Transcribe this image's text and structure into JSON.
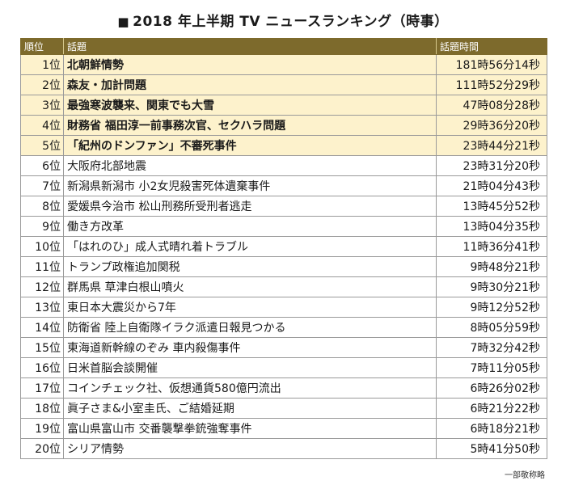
{
  "title": "2018 年上半期 TV ニュースランキング（時事）",
  "title_marker": "■",
  "table": {
    "headers": {
      "rank": "順位",
      "topic": "話題",
      "time": "話題時間"
    },
    "rows": [
      {
        "rank": "1位",
        "topic": "北朝鮮情勢",
        "time": "181時56分14秒"
      },
      {
        "rank": "2位",
        "topic": "森友・加計問題",
        "time": "111時52分29秒"
      },
      {
        "rank": "3位",
        "topic": "最強寒波襲来、関東でも大雪",
        "time": "47時08分28秒"
      },
      {
        "rank": "4位",
        "topic": "財務省 福田淳一前事務次官、セクハラ問題",
        "time": "29時36分20秒"
      },
      {
        "rank": "5位",
        "topic": "「紀州のドンファン」不審死事件",
        "time": "23時44分21秒"
      },
      {
        "rank": "6位",
        "topic": "大阪府北部地震",
        "time": "23時31分20秒"
      },
      {
        "rank": "7位",
        "topic": "新潟県新潟市 小2女児殺害死体遺棄事件",
        "time": "21時04分43秒"
      },
      {
        "rank": "8位",
        "topic": "愛媛県今治市 松山刑務所受刑者逃走",
        "time": "13時45分52秒"
      },
      {
        "rank": "9位",
        "topic": "働き方改革",
        "time": "13時04分35秒"
      },
      {
        "rank": "10位",
        "topic": "「はれのひ」成人式晴れ着トラブル",
        "time": "11時36分41秒"
      },
      {
        "rank": "11位",
        "topic": "トランプ政権追加関税",
        "time": "9時48分21秒"
      },
      {
        "rank": "12位",
        "topic": "群馬県 草津白根山噴火",
        "time": "9時30分21秒"
      },
      {
        "rank": "13位",
        "topic": "東日本大震災から7年",
        "time": "9時12分52秒"
      },
      {
        "rank": "14位",
        "topic": "防衛省 陸上自衛隊イラク派遣日報見つかる",
        "time": "8時05分59秒"
      },
      {
        "rank": "15位",
        "topic": "東海道新幹線のぞみ 車内殺傷事件",
        "time": "7時32分42秒"
      },
      {
        "rank": "16位",
        "topic": "日米首脳会談開催",
        "time": "7時11分05秒"
      },
      {
        "rank": "17位",
        "topic": "コインチェック社、仮想通貨580億円流出",
        "time": "6時26分02秒"
      },
      {
        "rank": "18位",
        "topic": "眞子さま&小室圭氏、ご結婚延期",
        "time": "6時21分22秒"
      },
      {
        "rank": "19位",
        "topic": "富山県富山市 交番襲撃拳銃強奪事件",
        "time": "6時18分21秒"
      },
      {
        "rank": "20位",
        "topic": "シリア情勢",
        "time": "5時41分50秒"
      }
    ]
  },
  "highlight_top_count": 5,
  "colors": {
    "header_bg": "#7d6a2c",
    "highlight_bg": "#fdf2cc"
  },
  "note": "一部敬称略"
}
